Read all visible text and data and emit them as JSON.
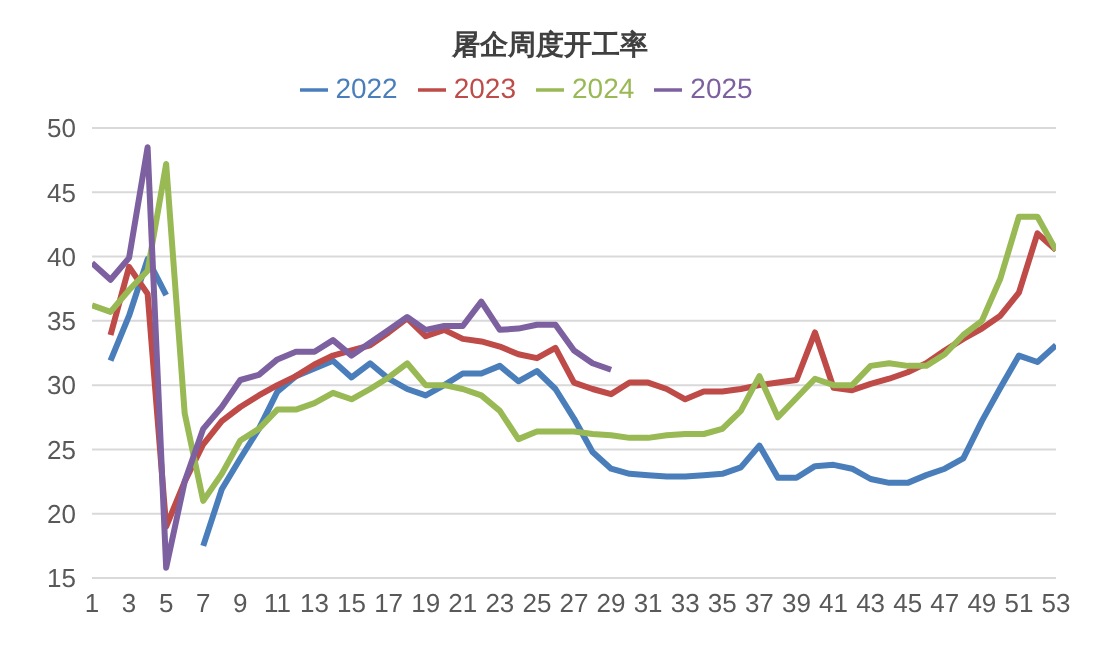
{
  "chart_data": {
    "type": "line",
    "title": "屠企周度开工率",
    "x": [
      1,
      2,
      3,
      4,
      5,
      6,
      7,
      8,
      9,
      10,
      11,
      12,
      13,
      14,
      15,
      16,
      17,
      18,
      19,
      20,
      21,
      22,
      23,
      24,
      25,
      26,
      27,
      28,
      29,
      30,
      31,
      32,
      33,
      34,
      35,
      36,
      37,
      38,
      39,
      40,
      41,
      42,
      43,
      44,
      45,
      46,
      47,
      48,
      49,
      50,
      51,
      52,
      53
    ],
    "series": [
      {
        "name": "2022",
        "color": "#4a7ebb",
        "values": [
          null,
          31.9,
          35.4,
          39.8,
          37,
          null,
          17.5,
          21.9,
          24.3,
          26.6,
          29.5,
          30.7,
          31.3,
          31.9,
          30.6,
          31.7,
          30.5,
          29.7,
          29.2,
          30,
          30.9,
          30.9,
          31.5,
          30.3,
          31.1,
          29.7,
          27.4,
          24.8,
          23.5,
          23.1,
          23,
          22.9,
          22.9,
          23,
          23.1,
          23.6,
          25.3,
          22.8,
          22.8,
          23.7,
          23.8,
          23.5,
          22.7,
          22.4,
          22.4,
          23,
          23.5,
          24.3,
          27.2,
          29.8,
          32.3,
          31.8,
          33.1
        ]
      },
      {
        "name": "2023",
        "color": "#be4b48",
        "values": [
          null,
          33.9,
          39.2,
          37.1,
          19,
          22.5,
          25.4,
          27.2,
          28.3,
          29.2,
          30,
          30.7,
          31.6,
          32.3,
          32.7,
          33.1,
          34.1,
          35.2,
          33.8,
          34.3,
          33.6,
          33.4,
          33,
          32.4,
          32.1,
          32.9,
          30.2,
          29.7,
          29.3,
          30.2,
          30.2,
          29.7,
          28.9,
          29.5,
          29.5,
          29.7,
          30,
          30.2,
          30.4,
          34.1,
          29.8,
          29.6,
          30.1,
          30.5,
          31,
          31.7,
          32.7,
          33.6,
          34.4,
          35.4,
          37.2,
          41.8,
          40.5
        ]
      },
      {
        "name": "2024",
        "color": "#98b954",
        "values": [
          36.2,
          35.7,
          37.4,
          38.9,
          47.2,
          27.8,
          21,
          23.1,
          25.7,
          26.6,
          28.1,
          28.1,
          28.6,
          29.4,
          28.9,
          29.7,
          30.6,
          31.7,
          30,
          30,
          29.7,
          29.2,
          28,
          25.8,
          26.4,
          26.4,
          26.4,
          26.2,
          26.1,
          25.9,
          25.9,
          26.1,
          26.2,
          26.2,
          26.6,
          28,
          30.7,
          27.5,
          29,
          30.5,
          30,
          30,
          31.5,
          31.7,
          31.5,
          31.5,
          32.4,
          33.9,
          35,
          38.3,
          43.1,
          43.1,
          40.5
        ]
      },
      {
        "name": "2025",
        "color": "#7d60a0",
        "values": [
          39.5,
          38.2,
          39.9,
          48.5,
          15.8,
          22.5,
          26.6,
          28.3,
          30.4,
          30.8,
          32,
          32.6,
          32.6,
          33.5,
          32.3,
          33.3,
          34.3,
          35.3,
          34.3,
          34.6,
          34.6,
          36.5,
          34.3,
          34.4,
          34.7,
          34.7,
          32.7,
          31.7,
          31.2,
          null,
          null,
          null,
          null,
          null,
          null,
          null,
          null,
          null,
          null,
          null,
          null,
          null,
          null,
          null,
          null,
          null,
          null,
          null,
          null,
          null,
          null,
          null,
          null
        ]
      }
    ],
    "xlim": [
      1,
      53
    ],
    "xticks": [
      1,
      3,
      5,
      7,
      9,
      11,
      13,
      15,
      17,
      19,
      21,
      23,
      25,
      27,
      29,
      31,
      33,
      35,
      37,
      39,
      41,
      43,
      45,
      47,
      49,
      51,
      53
    ],
    "ylim": [
      15,
      50
    ],
    "yticks": [
      15,
      20,
      25,
      30,
      35,
      40,
      45,
      50
    ],
    "grid": "y",
    "legend": "top",
    "marker": "none",
    "line_style": "solid"
  }
}
